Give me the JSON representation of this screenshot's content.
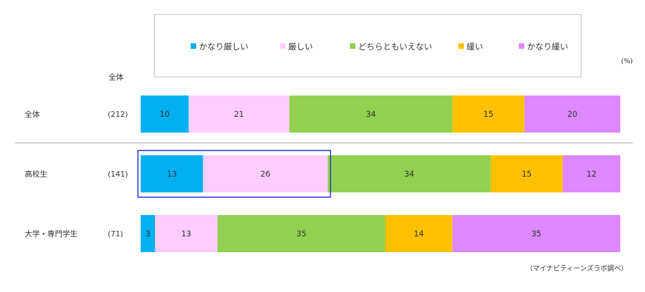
{
  "chart_data": {
    "type": "bar",
    "orientation": "horizontal",
    "stacked": true,
    "unit": "(%)",
    "column_header": "全体",
    "categories": [
      "全体",
      "高校生",
      "大学・専門学生"
    ],
    "counts": [
      "(212)",
      "(141)",
      "(71)"
    ],
    "series": [
      {
        "name": "かなり厳しい",
        "values": [
          10,
          13,
          3
        ]
      },
      {
        "name": "厳しい",
        "values": [
          21,
          26,
          13
        ]
      },
      {
        "name": "どちらともいえない",
        "values": [
          34,
          34,
          35
        ]
      },
      {
        "name": "緩い",
        "values": [
          15,
          15,
          14
        ]
      },
      {
        "name": "かなり緩い",
        "values": [
          20,
          12,
          35
        ]
      }
    ],
    "colors": [
      "#00b0f0",
      "#ffccff",
      "#92d050",
      "#ffc000",
      "#dd88ff"
    ],
    "highlight": {
      "category_index": 1,
      "series_indices": [
        0,
        1
      ],
      "color": "#1f2fd6"
    },
    "legend_placement": "top",
    "source_note": "（マイナビティーンズラボ調べ）"
  }
}
